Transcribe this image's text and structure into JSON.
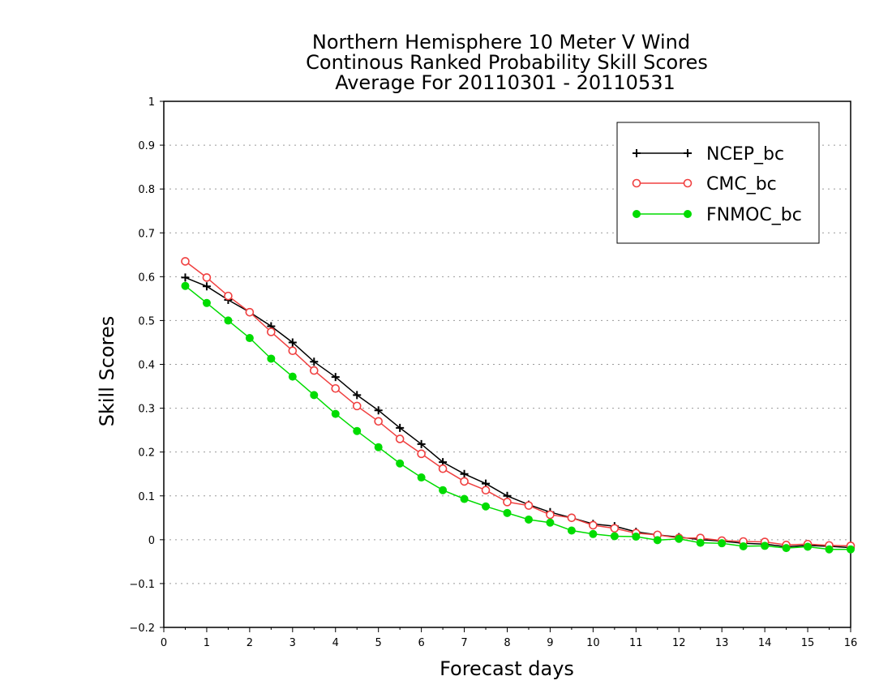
{
  "chart_data": {
    "type": "line",
    "title_lines": [
      "Northern Hemisphere 10 Meter V Wind",
      "Continous Ranked Probability Skill Scores",
      "Average For 20110301 - 20110531"
    ],
    "xlabel": "Forecast days",
    "ylabel": "Skill Scores",
    "xlim": [
      0,
      16
    ],
    "ylim": [
      -0.2,
      1
    ],
    "xticks": [
      0,
      1,
      2,
      3,
      4,
      5,
      6,
      7,
      8,
      9,
      10,
      11,
      12,
      13,
      14,
      15,
      16
    ],
    "yticks": [
      -0.2,
      -0.1,
      0,
      0.1,
      0.2,
      0.3,
      0.4,
      0.5,
      0.6,
      0.7,
      0.8,
      0.9,
      1
    ],
    "ytick_labels": [
      "−0.2",
      "−0.1",
      "0",
      "0.1",
      "0.2",
      "0.3",
      "0.4",
      "0.5",
      "0.6",
      "0.7",
      "0.8",
      "0.9",
      "1"
    ],
    "grid": "horizontal dotted",
    "legend_position": "top-right",
    "x": [
      0.5,
      1,
      1.5,
      2,
      2.5,
      3,
      3.5,
      4,
      4.5,
      5,
      5.5,
      6,
      6.5,
      7,
      7.5,
      8,
      8.5,
      9,
      9.5,
      10,
      10.5,
      11,
      11.5,
      12,
      12.5,
      13,
      13.5,
      14,
      14.5,
      15,
      15.5,
      16
    ],
    "series": [
      {
        "name": "NCEP_bc",
        "color": "#000000",
        "marker": "plus",
        "values": [
          0.598,
          0.578,
          0.547,
          0.519,
          0.487,
          0.45,
          0.406,
          0.371,
          0.33,
          0.295,
          0.255,
          0.218,
          0.177,
          0.15,
          0.128,
          0.1,
          0.08,
          0.063,
          0.05,
          0.036,
          0.031,
          0.018,
          0.011,
          0.006,
          0.0,
          -0.003,
          -0.008,
          -0.01,
          -0.016,
          -0.013,
          -0.015,
          -0.018
        ]
      },
      {
        "name": "CMC_bc",
        "color": "#f04040",
        "marker": "open-circle",
        "values": [
          0.635,
          0.598,
          0.556,
          0.519,
          0.474,
          0.431,
          0.386,
          0.345,
          0.305,
          0.27,
          0.23,
          0.196,
          0.162,
          0.133,
          0.113,
          0.086,
          0.078,
          0.057,
          0.05,
          0.033,
          0.026,
          0.015,
          0.011,
          0.004,
          0.004,
          -0.002,
          -0.004,
          -0.005,
          -0.012,
          -0.01,
          -0.013,
          -0.014
        ]
      },
      {
        "name": "FNMOC_bc",
        "color": "#00dc00",
        "marker": "filled-circle",
        "values": [
          0.579,
          0.54,
          0.5,
          0.46,
          0.413,
          0.372,
          0.33,
          0.287,
          0.248,
          0.211,
          0.174,
          0.142,
          0.113,
          0.093,
          0.076,
          0.061,
          0.046,
          0.039,
          0.021,
          0.013,
          0.008,
          0.007,
          -0.001,
          0.002,
          -0.007,
          -0.008,
          -0.015,
          -0.014,
          -0.019,
          -0.016,
          -0.022,
          -0.022
        ]
      }
    ]
  }
}
